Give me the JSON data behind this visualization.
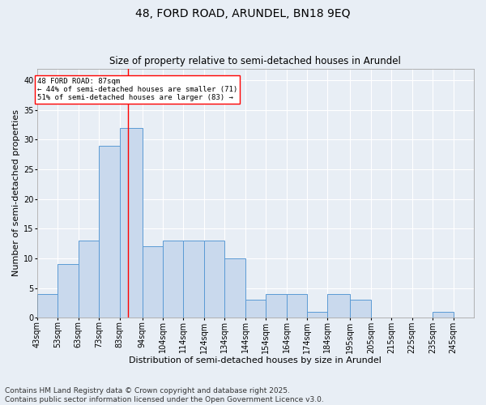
{
  "title": "48, FORD ROAD, ARUNDEL, BN18 9EQ",
  "subtitle": "Size of property relative to semi-detached houses in Arundel",
  "xlabel": "Distribution of semi-detached houses by size in Arundel",
  "ylabel": "Number of semi-detached properties",
  "bins": [
    "43sqm",
    "53sqm",
    "63sqm",
    "73sqm",
    "83sqm",
    "94sqm",
    "104sqm",
    "114sqm",
    "124sqm",
    "134sqm",
    "144sqm",
    "154sqm",
    "164sqm",
    "174sqm",
    "184sqm",
    "195sqm",
    "205sqm",
    "215sqm",
    "225sqm",
    "235sqm",
    "245sqm"
  ],
  "counts": [
    4,
    9,
    13,
    29,
    32,
    12,
    13,
    13,
    13,
    10,
    3,
    4,
    4,
    1,
    4,
    3,
    0,
    0,
    0,
    1
  ],
  "bar_color": "#c9d9ed",
  "bar_edge_color": "#5b9bd5",
  "property_line_x": 87,
  "annotation_text_line1": "48 FORD ROAD: 87sqm",
  "annotation_text_line2": "← 44% of semi-detached houses are smaller (71)",
  "annotation_text_line3": "51% of semi-detached houses are larger (83) →",
  "ylim": [
    0,
    42
  ],
  "yticks": [
    0,
    5,
    10,
    15,
    20,
    25,
    30,
    35,
    40
  ],
  "footer": "Contains HM Land Registry data © Crown copyright and database right 2025.\nContains public sector information licensed under the Open Government Licence v3.0.",
  "bg_color": "#e8eef5",
  "plot_bg_color": "#e8eef5",
  "title_fontsize": 10,
  "subtitle_fontsize": 8.5,
  "axis_label_fontsize": 8,
  "tick_fontsize": 7,
  "footer_fontsize": 6.5
}
